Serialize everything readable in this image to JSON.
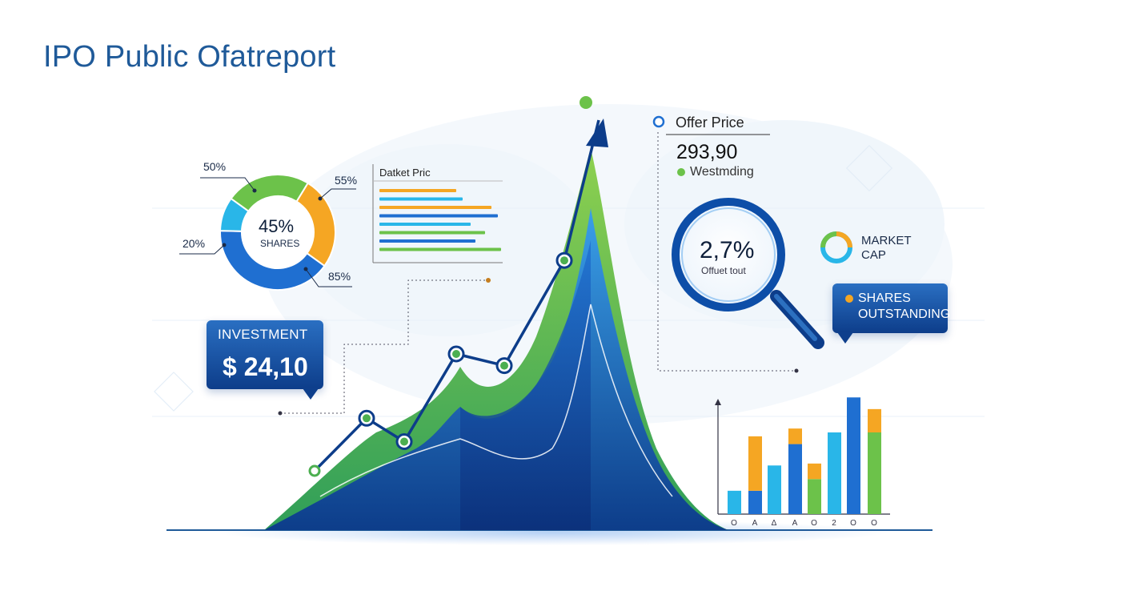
{
  "title": "IPO Public Ofatreport",
  "colors": {
    "navy": "#0d3d8a",
    "blue": "#1f6fd1",
    "sky": "#29b6e8",
    "green": "#6cc24a",
    "orange": "#f5a623",
    "accent_green": "#4caf50"
  },
  "donut": {
    "center_value": "45%",
    "center_label": "SHARES",
    "labels": [
      "50%",
      "55%",
      "20%",
      "85%"
    ]
  },
  "market_price_panel": {
    "title": "Datket Pric"
  },
  "offer": {
    "title": "Offer Price",
    "value": "293,90",
    "sub": "Westmding"
  },
  "lens": {
    "value": "2,7%",
    "sub": "Offuet tout"
  },
  "market_cap": {
    "label_line1": "MARKET",
    "label_line2": "CAP"
  },
  "shares_outstanding": {
    "line1": "SHARES",
    "line2": "OUTSTANDING"
  },
  "investment": {
    "label": "INVESTMENT",
    "value": "$ 24,10"
  },
  "chart_data": [
    {
      "type": "line",
      "title": "",
      "x": [
        1,
        2,
        3,
        4,
        5,
        6,
        7
      ],
      "series": [
        {
          "values": [
            10,
            19,
            15,
            30,
            28,
            46,
            70
          ]
        }
      ],
      "arrow": "up"
    },
    {
      "type": "pie",
      "title": "",
      "slices": [
        {
          "label": "55%",
          "value": 55,
          "color": "#f5a623"
        },
        {
          "label": "85%",
          "value": 85,
          "color": "#1f6fd1"
        },
        {
          "label": "20%",
          "value": 20,
          "color": "#29b6e8"
        },
        {
          "label": "50%",
          "value": 50,
          "color": "#6cc24a"
        }
      ],
      "center_text": "45% SHARES"
    },
    {
      "type": "bar",
      "title": "Datket Pric",
      "orientation": "horizontal",
      "series": [
        {
          "values": [
            48
          ],
          "color": "#f5a623"
        },
        {
          "values": [
            52
          ],
          "color": "#29b6e8"
        },
        {
          "values": [
            70
          ],
          "color": "#f5a623"
        },
        {
          "values": [
            74
          ],
          "color": "#1f6fd1"
        },
        {
          "values": [
            57
          ],
          "color": "#29b6e8"
        },
        {
          "values": [
            66
          ],
          "color": "#6cc24a"
        },
        {
          "values": [
            60
          ],
          "color": "#1f6fd1"
        },
        {
          "values": [
            76
          ],
          "color": "#6cc24a"
        }
      ],
      "xlim": [
        0,
        80
      ]
    },
    {
      "type": "bar",
      "title": "",
      "stacked": true,
      "categories": [
        "O",
        "A",
        "Δ",
        "A",
        "O",
        "2",
        "O",
        "O"
      ],
      "series": [
        {
          "name": "base",
          "values": [
            12,
            12,
            25,
            36,
            18,
            42,
            60,
            42
          ],
          "colors": [
            "#29b6e8",
            "#1f6fd1",
            "#29b6e8",
            "#1f6fd1",
            "#6cc24a",
            "#29b6e8",
            "#1f6fd1",
            "#6cc24a"
          ]
        },
        {
          "name": "top",
          "values": [
            0,
            28,
            0,
            8,
            8,
            0,
            0,
            12
          ],
          "colors": [
            "#6cc24a",
            "#f5a623",
            "#29b6e8",
            "#f5a623",
            "#f5a623",
            "#29b6e8",
            "#1f6fd1",
            "#f5a623"
          ]
        }
      ],
      "ylim": [
        0,
        70
      ]
    }
  ]
}
